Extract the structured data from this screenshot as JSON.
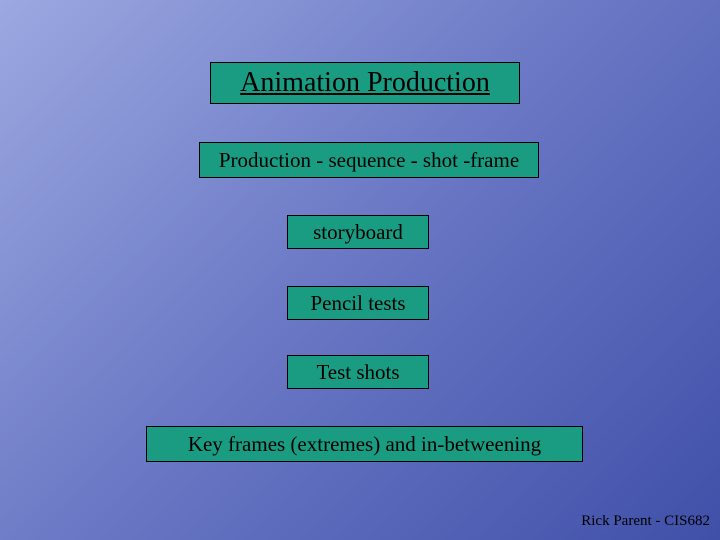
{
  "title": "Animation Production",
  "boxes": {
    "box1": "Production - sequence - shot -frame",
    "box2": "storyboard",
    "box3": "Pencil tests",
    "box4": "Test shots",
    "box5": "Key frames (extremes) and in-betweening"
  },
  "footer": "Rick Parent - CIS682",
  "styling": {
    "box_bg_color": "#1a9c82",
    "box_border_color": "#000000",
    "text_color": "#000000",
    "title_fontsize": 28,
    "box_fontsize": 21,
    "footer_fontsize": 15,
    "gradient_start": "#9ca8e0",
    "gradient_mid": "#6876c4",
    "gradient_end": "#4050a8"
  }
}
